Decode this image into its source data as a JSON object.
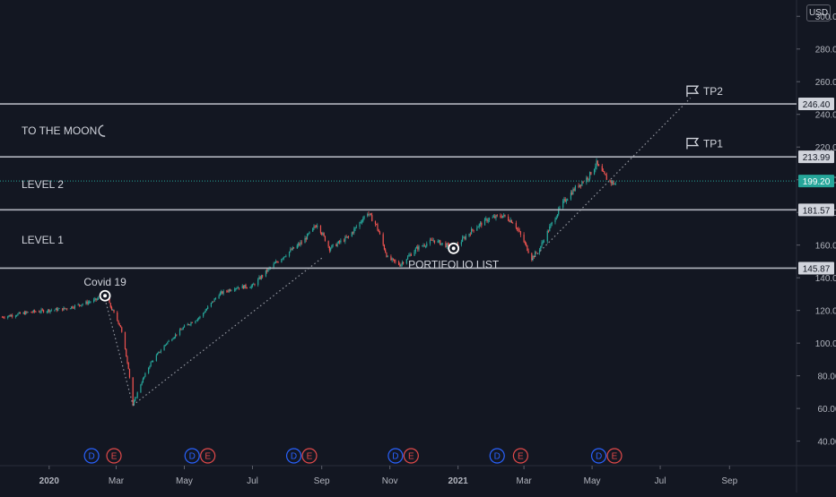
{
  "currency_label": "USD",
  "chart_data": {
    "type": "candlestick",
    "currency": "USD",
    "y_range": [
      25,
      310
    ],
    "y_ticks": [
      40,
      60,
      80,
      100,
      120,
      140,
      160,
      180,
      200,
      220,
      240,
      260,
      280,
      300
    ],
    "x_ticks": [
      {
        "label": "2020",
        "date": "2020-01-01",
        "bold": true
      },
      {
        "label": "Mar",
        "date": "2020-03-01"
      },
      {
        "label": "May",
        "date": "2020-05-01"
      },
      {
        "label": "Jul",
        "date": "2020-07-01"
      },
      {
        "label": "Sep",
        "date": "2020-09-01"
      },
      {
        "label": "Nov",
        "date": "2020-11-01"
      },
      {
        "label": "2021",
        "date": "2021-01-01",
        "bold": true
      },
      {
        "label": "Mar",
        "date": "2021-03-01"
      },
      {
        "label": "May",
        "date": "2021-05-01"
      },
      {
        "label": "Jul",
        "date": "2021-07-01"
      },
      {
        "label": "Sep",
        "date": "2021-09-01"
      }
    ],
    "x_range": [
      "2019-11-18",
      "2021-10-31"
    ],
    "price_path": [
      [
        "2019-11-20",
        116
      ],
      [
        "2019-12-15",
        119
      ],
      [
        "2020-01-15",
        121
      ],
      [
        "2020-02-10",
        126
      ],
      [
        "2020-02-20",
        129
      ],
      [
        "2020-03-05",
        110
      ],
      [
        "2020-03-12",
        85
      ],
      [
        "2020-03-16",
        62
      ],
      [
        "2020-03-23",
        75
      ],
      [
        "2020-04-01",
        88
      ],
      [
        "2020-04-15",
        100
      ],
      [
        "2020-05-01",
        110
      ],
      [
        "2020-05-15",
        116
      ],
      [
        "2020-06-01",
        130
      ],
      [
        "2020-06-15",
        134
      ],
      [
        "2020-07-01",
        135
      ],
      [
        "2020-07-15",
        145
      ],
      [
        "2020-08-01",
        155
      ],
      [
        "2020-08-15",
        162
      ],
      [
        "2020-08-28",
        173
      ],
      [
        "2020-09-08",
        158
      ],
      [
        "2020-09-25",
        165
      ],
      [
        "2020-10-12",
        180
      ],
      [
        "2020-10-20",
        172
      ],
      [
        "2020-10-30",
        152
      ],
      [
        "2020-11-10",
        148
      ],
      [
        "2020-11-25",
        158
      ],
      [
        "2020-12-10",
        163
      ],
      [
        "2020-12-28",
        158
      ],
      [
        "2021-01-15",
        170
      ],
      [
        "2021-01-28",
        176
      ],
      [
        "2021-02-10",
        178
      ],
      [
        "2021-02-20",
        174
      ],
      [
        "2021-03-01",
        162
      ],
      [
        "2021-03-08",
        152
      ],
      [
        "2021-03-15",
        158
      ],
      [
        "2021-03-25",
        172
      ],
      [
        "2021-04-05",
        186
      ],
      [
        "2021-04-16",
        195
      ],
      [
        "2021-04-28",
        202
      ],
      [
        "2021-05-05",
        210
      ],
      [
        "2021-05-08",
        206
      ],
      [
        "2021-05-15",
        200
      ],
      [
        "2021-05-22",
        197
      ]
    ],
    "horizontal_levels": [
      {
        "price": 246.4,
        "label": "246.40"
      },
      {
        "price": 213.99,
        "label": "213.99"
      },
      {
        "price": 181.57,
        "label": "181.57"
      },
      {
        "price": 145.87,
        "label": "145.87"
      }
    ],
    "current_price": {
      "price": 199.2,
      "label": "199.20",
      "color": "#26a69a"
    },
    "zone_labels": [
      {
        "text": "TO THE MOON",
        "icon": "moon-icon",
        "price": 230
      },
      {
        "text": "LEVEL 2",
        "price": 197
      },
      {
        "text": "LEVEL 1",
        "price": 163
      }
    ],
    "targets": [
      {
        "text": "TP2",
        "icon": "flag-icon",
        "date": "2021-07-25",
        "price": 254
      },
      {
        "text": "TP1",
        "icon": "flag-icon",
        "date": "2021-07-25",
        "price": 222
      }
    ],
    "annotations": [
      {
        "text": "Covid 19",
        "date": "2020-02-20",
        "price": 129,
        "label_side": "above"
      },
      {
        "text": "PORTIFOLIO LIST",
        "date": "2020-12-28",
        "price": 158,
        "label_side": "below"
      }
    ],
    "trendlines": [
      {
        "from": [
          "2020-02-20",
          127
        ],
        "to": [
          "2020-03-16",
          62
        ]
      },
      {
        "from": [
          "2020-03-16",
          62
        ],
        "to": [
          "2020-09-01",
          152
        ]
      },
      {
        "from": [
          "2021-03-08",
          151
        ],
        "to": [
          "2021-07-28",
          250
        ]
      }
    ],
    "event_markers": [
      {
        "letter": "D",
        "type": "dividend",
        "date": "2020-02-08"
      },
      {
        "letter": "E",
        "type": "earnings",
        "date": "2020-02-28"
      },
      {
        "letter": "D",
        "type": "dividend",
        "date": "2020-05-08"
      },
      {
        "letter": "E",
        "type": "earnings",
        "date": "2020-05-22"
      },
      {
        "letter": "D",
        "type": "dividend",
        "date": "2020-08-07"
      },
      {
        "letter": "E",
        "type": "earnings",
        "date": "2020-08-21"
      },
      {
        "letter": "D",
        "type": "dividend",
        "date": "2020-11-06"
      },
      {
        "letter": "E",
        "type": "earnings",
        "date": "2020-11-20"
      },
      {
        "letter": "D",
        "type": "dividend",
        "date": "2021-02-05"
      },
      {
        "letter": "E",
        "type": "earnings",
        "date": "2021-02-26"
      },
      {
        "letter": "D",
        "type": "dividend",
        "date": "2021-05-07"
      },
      {
        "letter": "E",
        "type": "earnings",
        "date": "2021-05-21"
      }
    ],
    "colors": {
      "background": "#131722",
      "up": "#26a69a",
      "down": "#ef5350",
      "level_line": "#b2b5be",
      "text": "#d1d4dc",
      "axis_text": "#b2b5be",
      "dividend": "#2962ff",
      "earnings": "#e34a4a",
      "trendline": "#9598a1"
    }
  }
}
